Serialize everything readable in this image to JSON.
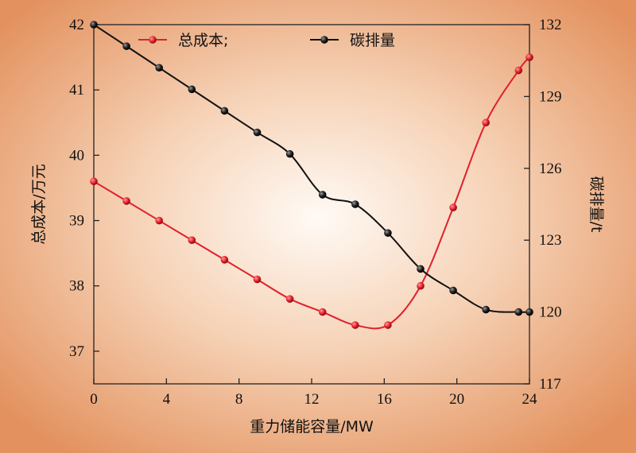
{
  "chart_data": {
    "type": "line",
    "xlabel": "重力储能容量/MW",
    "ylabel_left": "总成本/万元",
    "ylabel_right": "碳排量/t",
    "xlim": [
      0,
      24
    ],
    "ylim_left": [
      36.5,
      42
    ],
    "ylim_right": [
      117,
      132
    ],
    "x_ticks": [
      "0",
      "4",
      "8",
      "12",
      "16",
      "20",
      "24"
    ],
    "y_left_ticks": [
      "37",
      "38",
      "39",
      "40",
      "41",
      "42"
    ],
    "y_right_ticks": [
      "117",
      "120",
      "123",
      "126",
      "129",
      "132"
    ],
    "x": [
      0,
      1.8,
      3.6,
      5.4,
      7.2,
      9,
      10.8,
      12.6,
      14.4,
      16.2,
      18,
      19.8,
      21.6,
      23.4,
      24
    ],
    "series": [
      {
        "name": "总成本;",
        "axis": "left",
        "color": "#e0202a",
        "values": [
          39.6,
          39.3,
          39.0,
          38.7,
          38.4,
          38.1,
          37.8,
          37.6,
          37.4,
          37.4,
          38.0,
          39.2,
          40.5,
          41.3,
          41.5
        ]
      },
      {
        "name": "碳排量",
        "axis": "right",
        "color": "#111111",
        "values": [
          132.0,
          131.1,
          130.2,
          129.3,
          128.4,
          127.5,
          126.6,
          124.9,
          124.5,
          123.3,
          121.8,
          120.9,
          120.1,
          120.0,
          120.0
        ]
      }
    ],
    "legend_position": "top",
    "grid": false
  }
}
